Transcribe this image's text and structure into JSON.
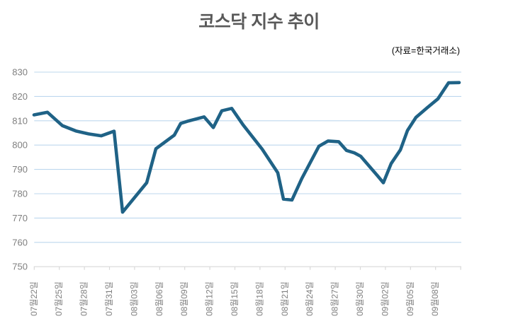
{
  "title": "코스닥 지수 추이",
  "source_note": "(자료=한국거래소)",
  "colors": {
    "line": "#1f6286",
    "gridline": "#bdd7ee",
    "axis": "#d9d9d9",
    "tick_label": "#7f7f7f",
    "title": "#595959",
    "source": "#000000",
    "background": "#ffffff"
  },
  "chart_data": {
    "type": "line",
    "title": "코스닥 지수 추이",
    "source": "(자료=한국거래소)",
    "legend": "none",
    "grid": "horizontal light-blue major gridlines",
    "ylim": [
      750,
      830
    ],
    "y_ticks": [
      750,
      760,
      770,
      780,
      790,
      800,
      810,
      820,
      830
    ],
    "x_tick_labels": [
      "07월22일",
      "07월25일",
      "07월28일",
      "07월31일",
      "08월03일",
      "08월06일",
      "08월09일",
      "08월12일",
      "08월15일",
      "08월18일",
      "08월21일",
      "08월24일",
      "08월27일",
      "08월30일",
      "09월02일",
      "09월05일",
      "09월08일"
    ],
    "values_at_labels": [
      812.4,
      809.0,
      805.2,
      805.5,
      779.0,
      800.0,
      809.6,
      808.0,
      813.0,
      799.0,
      777.7,
      793.5,
      801.5,
      795.4,
      784.7,
      807.8,
      818.3
    ],
    "polyline_note": "full digitized line shape; x = plot px position (48=first tick, 651=right edge), v = index value",
    "polyline": [
      [
        48,
        812.4
      ],
      [
        67,
        813.5
      ],
      [
        88,
        808.0
      ],
      [
        107,
        805.8
      ],
      [
        125,
        804.6
      ],
      [
        143,
        803.8
      ],
      [
        161,
        805.7
      ],
      [
        173,
        772.4
      ],
      [
        207,
        784.5
      ],
      [
        220,
        798.5
      ],
      [
        246,
        804.1
      ],
      [
        255,
        808.9
      ],
      [
        266,
        809.9
      ],
      [
        288,
        811.6
      ],
      [
        301,
        807.2
      ],
      [
        313,
        814.1
      ],
      [
        327,
        815.1
      ],
      [
        343,
        808.3
      ],
      [
        370,
        798.3
      ],
      [
        392,
        788.6
      ],
      [
        400,
        777.8
      ],
      [
        412,
        777.4
      ],
      [
        426,
        786.3
      ],
      [
        450,
        799.5
      ],
      [
        463,
        801.7
      ],
      [
        478,
        801.4
      ],
      [
        489,
        797.8
      ],
      [
        500,
        796.8
      ],
      [
        509,
        795.4
      ],
      [
        533,
        787.3
      ],
      [
        541,
        784.5
      ],
      [
        552,
        792.4
      ],
      [
        565,
        798.0
      ],
      [
        575,
        806.0
      ],
      [
        587,
        811.4
      ],
      [
        603,
        815.4
      ],
      [
        618,
        819.0
      ],
      [
        633,
        825.6
      ],
      [
        648,
        825.7
      ]
    ]
  }
}
